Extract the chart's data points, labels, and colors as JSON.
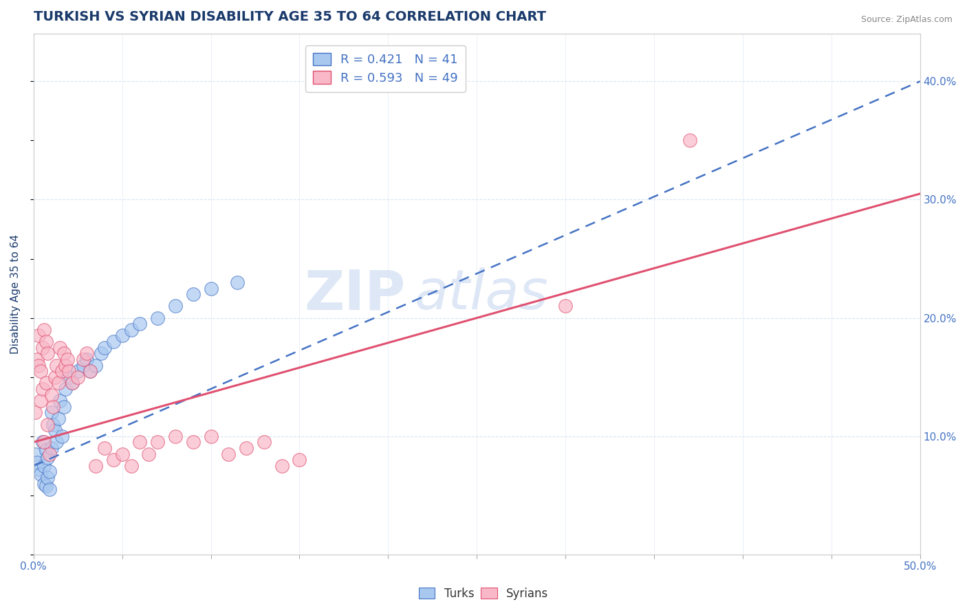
{
  "title": "TURKISH VS SYRIAN DISABILITY AGE 35 TO 64 CORRELATION CHART",
  "source_text": "Source: ZipAtlas.com",
  "ylabel": "Disability Age 35 to 64",
  "xlim": [
    0.0,
    0.5
  ],
  "ylim": [
    0.0,
    0.44
  ],
  "xticks": [
    0.0,
    0.05,
    0.1,
    0.15,
    0.2,
    0.25,
    0.3,
    0.35,
    0.4,
    0.45,
    0.5
  ],
  "ytick_right_vals": [
    0.1,
    0.2,
    0.3,
    0.4
  ],
  "ytick_right_labels": [
    "10.0%",
    "20.0%",
    "30.0%",
    "40.0%"
  ],
  "turks_x": [
    0.001,
    0.002,
    0.003,
    0.004,
    0.005,
    0.006,
    0.006,
    0.007,
    0.007,
    0.008,
    0.008,
    0.009,
    0.009,
    0.01,
    0.01,
    0.011,
    0.012,
    0.013,
    0.014,
    0.015,
    0.016,
    0.017,
    0.018,
    0.02,
    0.022,
    0.025,
    0.028,
    0.03,
    0.032,
    0.035,
    0.038,
    0.04,
    0.045,
    0.05,
    0.055,
    0.06,
    0.07,
    0.08,
    0.09,
    0.1,
    0.115
  ],
  "turks_y": [
    0.085,
    0.078,
    0.072,
    0.068,
    0.095,
    0.075,
    0.06,
    0.088,
    0.058,
    0.082,
    0.065,
    0.07,
    0.055,
    0.12,
    0.09,
    0.11,
    0.105,
    0.095,
    0.115,
    0.13,
    0.1,
    0.125,
    0.14,
    0.15,
    0.145,
    0.155,
    0.16,
    0.165,
    0.155,
    0.16,
    0.17,
    0.175,
    0.18,
    0.185,
    0.19,
    0.195,
    0.2,
    0.21,
    0.22,
    0.225,
    0.23
  ],
  "syrians_x": [
    0.001,
    0.002,
    0.003,
    0.003,
    0.004,
    0.004,
    0.005,
    0.005,
    0.006,
    0.006,
    0.007,
    0.007,
    0.008,
    0.008,
    0.009,
    0.01,
    0.011,
    0.012,
    0.013,
    0.014,
    0.015,
    0.016,
    0.017,
    0.018,
    0.019,
    0.02,
    0.022,
    0.025,
    0.028,
    0.03,
    0.032,
    0.035,
    0.04,
    0.045,
    0.05,
    0.055,
    0.06,
    0.065,
    0.07,
    0.08,
    0.09,
    0.1,
    0.11,
    0.12,
    0.13,
    0.14,
    0.15,
    0.3,
    0.37
  ],
  "syrians_y": [
    0.12,
    0.165,
    0.16,
    0.185,
    0.155,
    0.13,
    0.175,
    0.14,
    0.19,
    0.095,
    0.18,
    0.145,
    0.17,
    0.11,
    0.085,
    0.135,
    0.125,
    0.15,
    0.16,
    0.145,
    0.175,
    0.155,
    0.17,
    0.16,
    0.165,
    0.155,
    0.145,
    0.15,
    0.165,
    0.17,
    0.155,
    0.075,
    0.09,
    0.08,
    0.085,
    0.075,
    0.095,
    0.085,
    0.095,
    0.1,
    0.095,
    0.1,
    0.085,
    0.09,
    0.095,
    0.075,
    0.08,
    0.21,
    0.35
  ],
  "turks_color": "#a8c8f0",
  "syrians_color": "#f8b8c8",
  "turks_line_color": "#4472c4",
  "syrians_line_color": "#e05070",
  "turks_R": 0.421,
  "turks_N": 41,
  "syrians_R": 0.593,
  "syrians_N": 49,
  "turks_trend_x0": 0.0,
  "turks_trend_y0": 0.075,
  "turks_trend_x1": 0.5,
  "turks_trend_y1": 0.4,
  "syrians_trend_x0": 0.0,
  "syrians_trend_y0": 0.095,
  "syrians_trend_x1": 0.5,
  "syrians_trend_y1": 0.305,
  "watermark_zip": "ZIP",
  "watermark_atlas": "atlas",
  "watermark_color_zip": "#c8d8f0",
  "watermark_color_atlas": "#c8d8f0",
  "title_color": "#1a3a6b",
  "axis_label_color": "#1a3a6b",
  "tick_color": "#4472c4",
  "legend_text_color": "#4472c4",
  "source_color": "#888888",
  "background_color": "#ffffff",
  "grid_color": "#d8e4f0",
  "title_fontsize": 14,
  "label_fontsize": 11,
  "tick_fontsize": 11,
  "legend_fontsize": 13
}
